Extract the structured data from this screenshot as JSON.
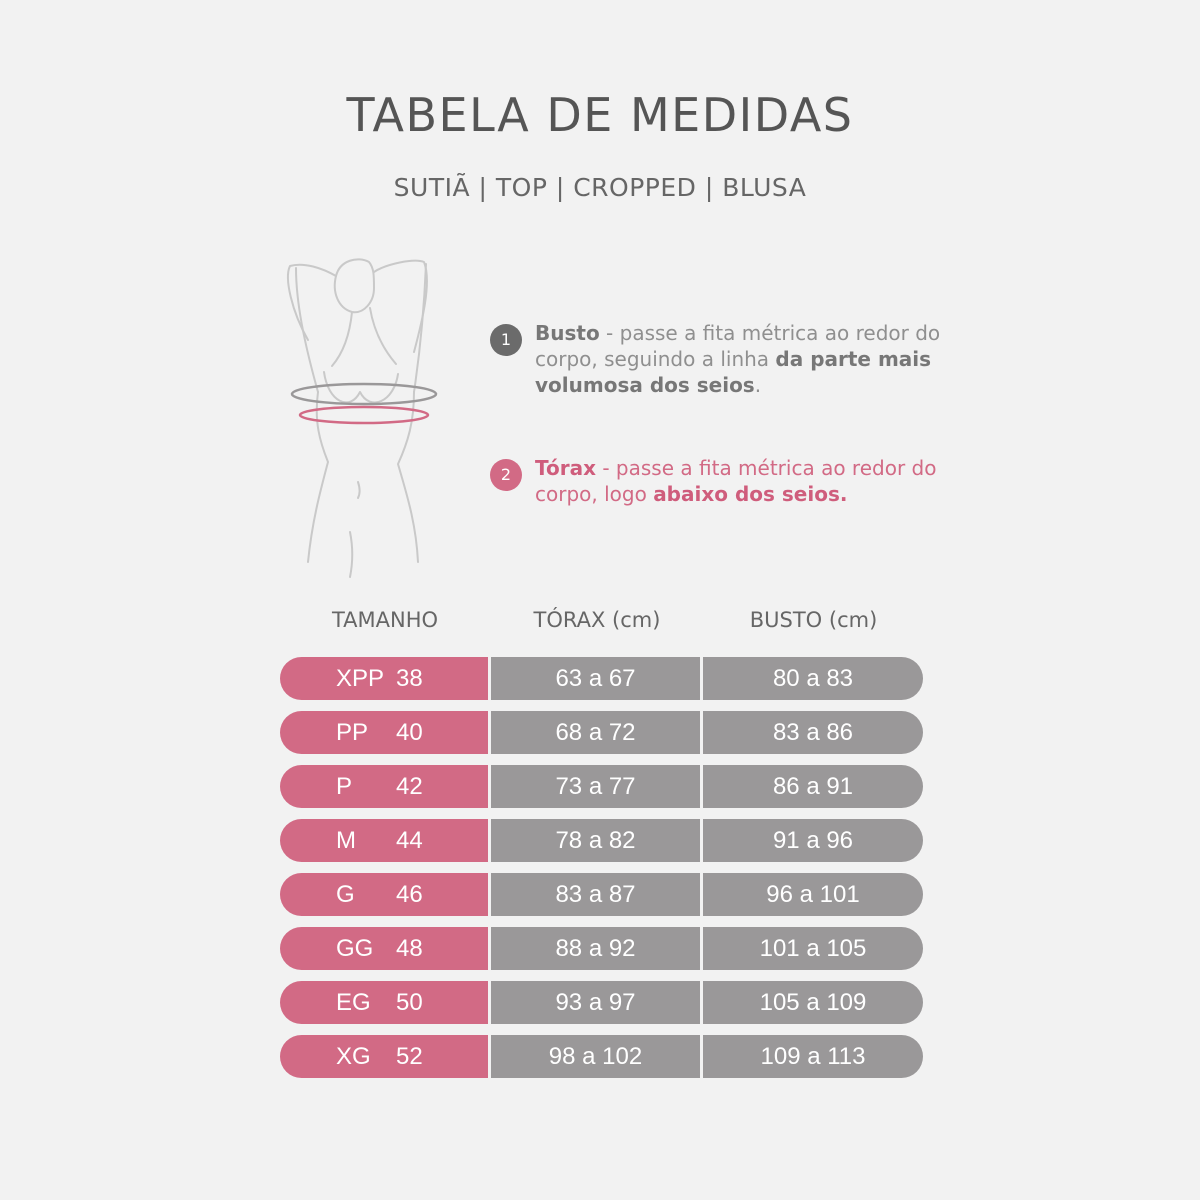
{
  "title": "TABELA DE MEDIDAS",
  "subtitle": "SUTIÃ | TOP | CROPPED | BLUSA",
  "instructions": {
    "busto": {
      "number": "1",
      "label": "Busto",
      "text1": " - passe a fita métrica ao redor do corpo, seguindo a linha ",
      "bold": "da parte mais volumosa dos seios",
      "end": "."
    },
    "torax": {
      "number": "2",
      "label": "Tórax",
      "text1": " - passe a fita métrica ao redor do corpo, logo ",
      "bold": "abaixo dos seios.",
      "end": ""
    }
  },
  "table": {
    "headers": {
      "size": "TAMANHO",
      "torax": "TÓRAX (cm)",
      "busto": "BUSTO (cm)"
    },
    "rows": [
      {
        "size": "XPP",
        "num": "38",
        "torax": "63 a 67",
        "busto": "80 a 83"
      },
      {
        "size": "PP",
        "num": "40",
        "torax": "68 a 72",
        "busto": "83 a 86"
      },
      {
        "size": "P",
        "num": "42",
        "torax": "73 a 77",
        "busto": "86 a 91"
      },
      {
        "size": "M",
        "num": "44",
        "torax": "78 a 82",
        "busto": "91 a 96"
      },
      {
        "size": "G",
        "num": "46",
        "torax": "83 a 87",
        "busto": "96 a 101"
      },
      {
        "size": "GG",
        "num": "48",
        "torax": "88 a 92",
        "busto": "101 a 105"
      },
      {
        "size": "EG",
        "num": "50",
        "torax": "93 a 97",
        "busto": "105 a 109"
      },
      {
        "size": "XG",
        "num": "52",
        "torax": "98 a 102",
        "busto": "109 a 113"
      }
    ]
  },
  "colors": {
    "accent": "#d26a85",
    "gray_cell": "#9a9899",
    "background": "#f2f2f2"
  }
}
